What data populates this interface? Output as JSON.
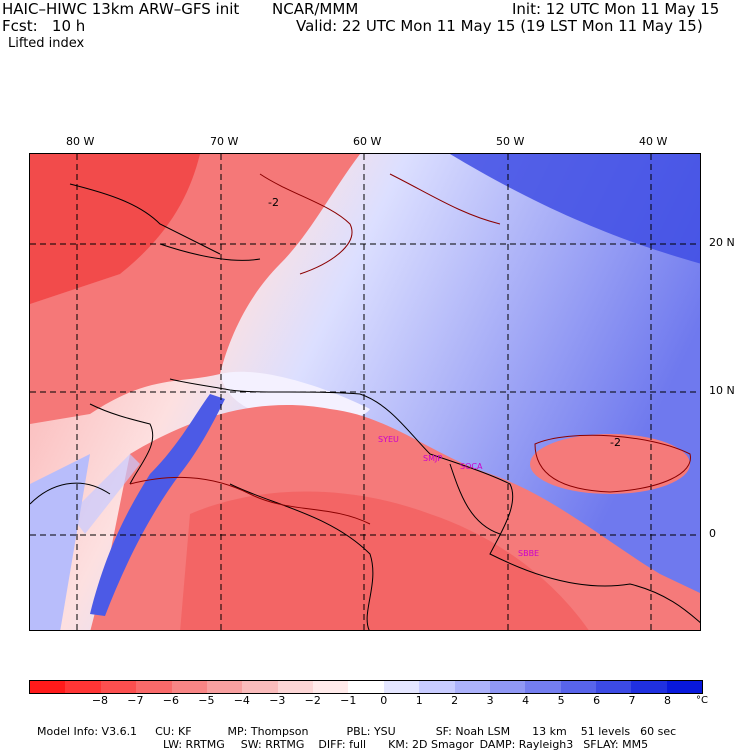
{
  "header": {
    "model": "HAIC–HIWC 13km ARW–GFS init",
    "org": "NCAR/MMM",
    "init": "Init: 12 UTC Mon 11 May 15",
    "fcst": "Fcst:   10 h",
    "valid": "Valid: 22 UTC Mon 11 May 15 (19 LST Mon 11 May 15)",
    "field": "Lifted index"
  },
  "map": {
    "longitude_labels": [
      "80 W",
      "70 W",
      "60 W",
      "50 W",
      "40 W"
    ],
    "latitude_labels": [
      "20 N",
      "10 N",
      "0"
    ],
    "contour_label": "-2",
    "stations": [
      "SYEU",
      "SMJP",
      "SOCA",
      "SBBE"
    ]
  },
  "colorbar": {
    "colors": [
      "#ff1a1a",
      "#ff3535",
      "#fc4f4f",
      "#fa6a6a",
      "#f88585",
      "#f8a0a0",
      "#fabcbc",
      "#fcd6d6",
      "#ffeaea",
      "#ffffff",
      "#e4e6ff",
      "#c8ccff",
      "#acb2fb",
      "#9098f5",
      "#747ef0",
      "#5864ea",
      "#3c4ae4",
      "#2030e0",
      "#0818dd"
    ],
    "labels": [
      "−8",
      "−7",
      "−6",
      "−5",
      "−4",
      "−3",
      "−2",
      "−1",
      "0",
      "1",
      "2",
      "3",
      "4",
      "5",
      "6",
      "7",
      "8"
    ],
    "unit": "°C"
  },
  "model_info": {
    "line1": [
      "Model Info: V3.6.1",
      "CU: KF",
      "MP: Thompson",
      "PBL: YSU",
      "SF: Noah LSM",
      "13 km",
      "51 levels",
      "60 sec"
    ],
    "line2": [
      "LW: RRTMG",
      "SW: RRTMG",
      "DIFF: full",
      "KM: 2D Smagor",
      "DAMP: Rayleigh3",
      "SFLAY: MM5"
    ]
  }
}
